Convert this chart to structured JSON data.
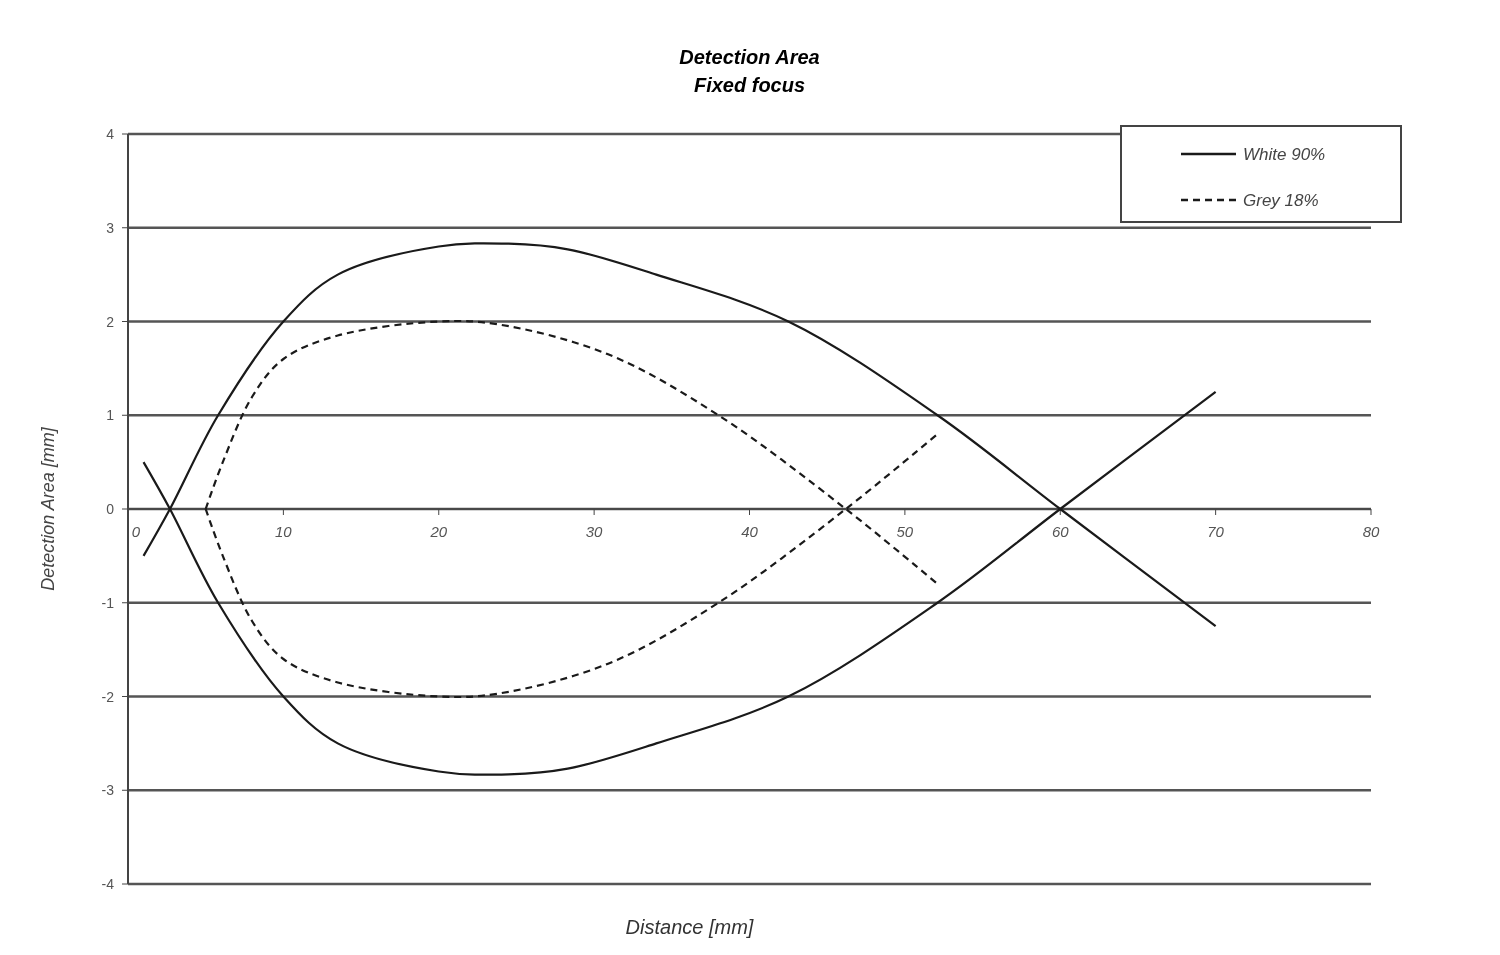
{
  "chart_data": {
    "type": "line",
    "title": "Detection Area",
    "subtitle": "Fixed focus",
    "xlabel": "Distance [mm]",
    "ylabel": "Detection Area [mm]",
    "xlim": [
      0,
      80
    ],
    "xticks": [
      0,
      10,
      20,
      30,
      40,
      50,
      60,
      70,
      80
    ],
    "ylim": [
      -4,
      4
    ],
    "yticks": [
      -4,
      -3,
      -2,
      -1,
      0,
      1,
      2,
      3,
      4
    ],
    "grid": "y",
    "legend": "top right",
    "series": [
      {
        "name": "White 90%",
        "color": "#1a1a1a",
        "line_style": "solid",
        "x": [
          1,
          2.7,
          5.8,
          10,
          13.5,
          20,
          24.5,
          28.3,
          34,
          42.5,
          52.1,
          60,
          70,
          null,
          1,
          2.7,
          5.8,
          10,
          13.5,
          20,
          24.5,
          28.3,
          34,
          42.5,
          52.1,
          60,
          70
        ],
        "values": [
          -0.5,
          0,
          1,
          2,
          2.5,
          2.8,
          2.83,
          2.77,
          2.5,
          2,
          1,
          0,
          -1.25,
          null,
          0.5,
          0,
          -1,
          -2,
          -2.5,
          -2.8,
          -2.83,
          -2.77,
          -2.5,
          -2,
          -1,
          0,
          1.25
        ]
      },
      {
        "name": "Grey 18%",
        "color": "#1a1a1a",
        "line_style": "dashed",
        "x": [
          5,
          6.1,
          8,
          10,
          13.5,
          20,
          23.8,
          30.9,
          38,
          46.2,
          52.1,
          null,
          5,
          6.1,
          8,
          10,
          13.5,
          20,
          23.8,
          30.9,
          38,
          46.2,
          52.1
        ],
        "values": [
          0,
          0.5,
          1.2,
          1.6,
          1.85,
          2,
          1.97,
          1.65,
          1,
          0,
          -0.8,
          null,
          0,
          -0.5,
          -1.2,
          -1.6,
          -1.85,
          -2,
          -1.97,
          -1.65,
          -1,
          0,
          0.8
        ]
      }
    ]
  }
}
